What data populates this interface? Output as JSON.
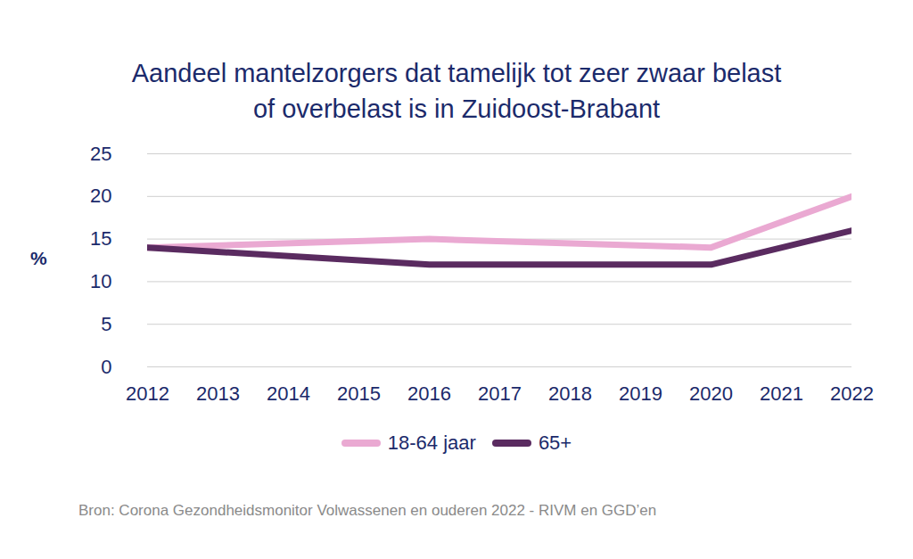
{
  "chart_data": {
    "type": "line",
    "title": "Aandeel mantelzorgers dat tamelijk tot zeer zwaar belast of overbelast is in Zuidoost-Brabant",
    "y_label": "%",
    "source": "Bron: Corona Gezondheidsmonitor Volwassenen en ouderen 2022 - RIVM en GGD’en",
    "x": [
      2012,
      2016,
      2020,
      2022
    ],
    "series": [
      {
        "name": "18-64 jaar",
        "color": "#eaa9d2",
        "values": [
          14,
          15,
          14,
          20
        ]
      },
      {
        "name": "65+",
        "color": "#5a2b60",
        "values": [
          14,
          12,
          12,
          16
        ]
      }
    ],
    "xlim": [
      2012,
      2022
    ],
    "xticks": [
      2012,
      2013,
      2014,
      2015,
      2016,
      2017,
      2018,
      2019,
      2020,
      2021,
      2022
    ],
    "ylim": [
      0,
      25
    ],
    "yticks": [
      0,
      5,
      10,
      15,
      20,
      25
    ],
    "grid": true,
    "legend": "bottom"
  }
}
